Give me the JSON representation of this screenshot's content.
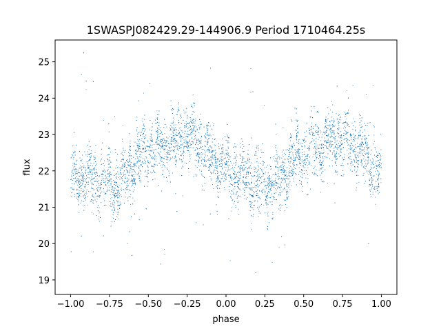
{
  "chart_data": {
    "type": "scatter",
    "title": "1SWASPJ082429.29-144906.9 Period 1710464.25s",
    "xlabel": "phase",
    "ylabel": "flux",
    "xlim": [
      -1.1,
      1.1
    ],
    "ylim": [
      18.6,
      25.6
    ],
    "xticks": [
      -1.0,
      -0.75,
      -0.5,
      -0.25,
      0.0,
      0.25,
      0.5,
      0.75,
      1.0
    ],
    "xtick_labels": [
      "−1.00",
      "−0.75",
      "−0.50",
      "−0.25",
      "0.00",
      "0.25",
      "0.50",
      "0.75",
      "1.00"
    ],
    "yticks": [
      19,
      20,
      21,
      22,
      23,
      24,
      25
    ],
    "ytick_labels": [
      "19",
      "20",
      "21",
      "22",
      "23",
      "24",
      "25"
    ],
    "grid": false,
    "marker_color": "#1f77b4",
    "series": [
      {
        "phase_profile": [
          {
            "x": -1.0,
            "y": 21.8
          },
          {
            "x": -0.9,
            "y": 21.8
          },
          {
            "x": -0.8,
            "y": 21.7
          },
          {
            "x": -0.7,
            "y": 21.6
          },
          {
            "x": -0.65,
            "y": 21.8
          },
          {
            "x": -0.6,
            "y": 22.1
          },
          {
            "x": -0.55,
            "y": 22.4
          },
          {
            "x": -0.45,
            "y": 22.6
          },
          {
            "x": -0.35,
            "y": 22.8
          },
          {
            "x": -0.3,
            "y": 22.9
          },
          {
            "x": -0.2,
            "y": 22.8
          },
          {
            "x": -0.1,
            "y": 22.4
          },
          {
            "x": 0.0,
            "y": 22.0
          },
          {
            "x": 0.1,
            "y": 21.8
          },
          {
            "x": 0.2,
            "y": 21.7
          },
          {
            "x": 0.3,
            "y": 21.6
          },
          {
            "x": 0.35,
            "y": 21.8
          },
          {
            "x": 0.4,
            "y": 22.1
          },
          {
            "x": 0.45,
            "y": 22.4
          },
          {
            "x": 0.55,
            "y": 22.6
          },
          {
            "x": 0.65,
            "y": 22.8
          },
          {
            "x": 0.7,
            "y": 22.9
          },
          {
            "x": 0.8,
            "y": 22.8
          },
          {
            "x": 0.9,
            "y": 22.4
          },
          {
            "x": 1.0,
            "y": 21.8
          }
        ]
      }
    ]
  }
}
